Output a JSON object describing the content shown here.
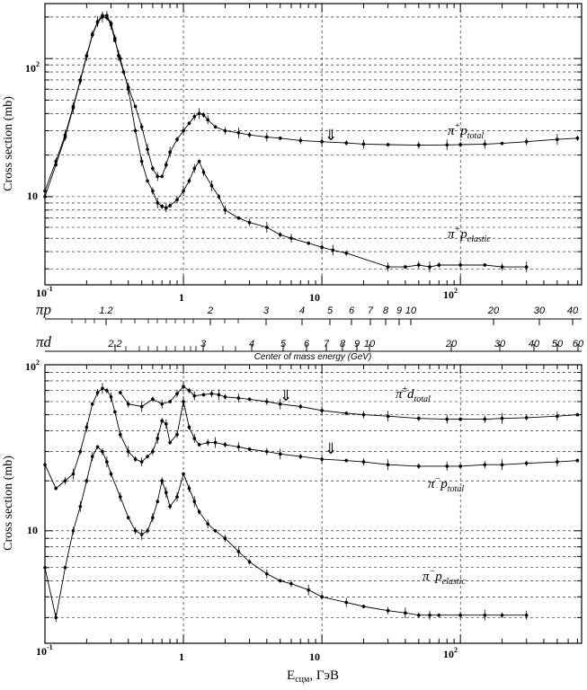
{
  "chart_data": [
    {
      "type": "scatter",
      "xscale": "log",
      "yscale": "log",
      "xlim": [
        0.1,
        750
      ],
      "ylim": [
        2.3,
        250
      ],
      "ylabel": "Cross section (mb)",
      "x_tick_labels": [
        "10",
        "1",
        "10",
        "10"
      ],
      "x_tick_exponents": [
        "-1",
        "",
        "",
        "2"
      ],
      "y_tick_labels": [
        "10",
        "10"
      ],
      "y_tick_exponents": [
        "",
        "2"
      ],
      "series": [
        {
          "name": "π⁺p total",
          "label_main": "π",
          "label_sup": "+",
          "label_mid": "p",
          "label_sub": "total",
          "x": [
            0.1,
            0.12,
            0.14,
            0.16,
            0.18,
            0.2,
            0.22,
            0.24,
            0.26,
            0.28,
            0.3,
            0.32,
            0.34,
            0.37,
            0.4,
            0.45,
            0.5,
            0.55,
            0.6,
            0.65,
            0.7,
            0.75,
            0.8,
            0.9,
            1.0,
            1.1,
            1.2,
            1.3,
            1.4,
            1.5,
            1.7,
            2.0,
            2.5,
            3.0,
            4.0,
            5.0,
            7.0,
            10,
            15,
            20,
            30,
            50,
            80,
            100,
            150,
            200,
            300,
            500,
            700
          ],
          "y": [
            11,
            18,
            28,
            45,
            70,
            105,
            150,
            185,
            205,
            205,
            180,
            140,
            105,
            80,
            62,
            45,
            32,
            22,
            16,
            14,
            14,
            17,
            21,
            26,
            30,
            34,
            38,
            40,
            39,
            36,
            32,
            30,
            29,
            28,
            27,
            26.5,
            25.5,
            25,
            24.5,
            24,
            23.8,
            23.6,
            23.7,
            23.8,
            24,
            24.3,
            25,
            26,
            26.5
          ]
        },
        {
          "name": "π⁺p elastic",
          "label_main": "π",
          "label_sup": "+",
          "label_mid": "p",
          "label_sub": "elastic",
          "x": [
            0.1,
            0.12,
            0.14,
            0.16,
            0.18,
            0.2,
            0.22,
            0.24,
            0.26,
            0.28,
            0.3,
            0.32,
            0.35,
            0.4,
            0.45,
            0.5,
            0.55,
            0.6,
            0.65,
            0.7,
            0.75,
            0.8,
            0.9,
            1.0,
            1.1,
            1.2,
            1.3,
            1.4,
            1.6,
            1.8,
            2.0,
            2.5,
            3.0,
            4.0,
            5.0,
            6.0,
            8.0,
            10,
            12,
            15,
            30,
            40,
            50,
            60,
            70,
            100,
            150,
            200,
            300
          ],
          "y": [
            10,
            17,
            27,
            44,
            69,
            104,
            148,
            183,
            200,
            198,
            175,
            135,
            100,
            60,
            30,
            18,
            13,
            11,
            9,
            8.5,
            8.3,
            8.6,
            9.5,
            11,
            13,
            16,
            18,
            15,
            12,
            10,
            8,
            7,
            6.5,
            6,
            5.3,
            5,
            4.6,
            4.3,
            4.1,
            3.9,
            3.1,
            3.1,
            3.2,
            3.1,
            3.2,
            3.2,
            3.2,
            3.1,
            3.1
          ]
        }
      ]
    },
    {
      "type": "scatter",
      "xscale": "log",
      "yscale": "log",
      "xlim": [
        0.1,
        750
      ],
      "ylim": [
        2.1,
        100
      ],
      "xlabel": "E",
      "xlabel_sub": "сцм",
      "xlabel_tail": ", ГэВ",
      "ylabel": "Cross section (mb)",
      "x_tick_labels": [
        "10",
        "1",
        "10",
        "10"
      ],
      "x_tick_exponents": [
        "-1",
        "",
        "",
        "2"
      ],
      "y_tick_labels": [
        "10",
        "10"
      ],
      "y_tick_exponents": [
        "",
        "2"
      ],
      "series": [
        {
          "name": "π±d total",
          "label_main": "π",
          "label_sup": "±",
          "label_mid": "d",
          "label_sub": "total",
          "x": [
            0.35,
            0.4,
            0.5,
            0.6,
            0.7,
            0.8,
            0.9,
            1.0,
            1.1,
            1.2,
            1.4,
            1.6,
            1.8,
            2.0,
            2.5,
            3,
            4,
            5,
            7,
            10,
            15,
            20,
            30,
            50,
            80,
            100,
            150,
            200,
            300,
            500,
            700
          ],
          "y": [
            68,
            58,
            56,
            62,
            58,
            60,
            67,
            74,
            70,
            65,
            66,
            67,
            66,
            64,
            63,
            62,
            60,
            58,
            56,
            53,
            51,
            50,
            49,
            47.5,
            47,
            47,
            47,
            47.5,
            48,
            49,
            50
          ]
        },
        {
          "name": "π⁻p total",
          "label_main": "π",
          "label_sup": "−",
          "label_mid": "p",
          "label_sub": "total",
          "x": [
            0.1,
            0.12,
            0.14,
            0.16,
            0.18,
            0.2,
            0.22,
            0.24,
            0.26,
            0.28,
            0.3,
            0.32,
            0.35,
            0.4,
            0.45,
            0.5,
            0.55,
            0.6,
            0.65,
            0.7,
            0.75,
            0.8,
            0.9,
            1.0,
            1.1,
            1.2,
            1.3,
            1.5,
            1.7,
            2.0,
            2.5,
            3,
            4,
            5,
            7,
            10,
            15,
            20,
            30,
            50,
            80,
            100,
            150,
            200,
            300,
            500,
            700
          ],
          "y": [
            25,
            18,
            20,
            22,
            30,
            42,
            58,
            68,
            72,
            70,
            64,
            52,
            38,
            30,
            27,
            26,
            28,
            30,
            36,
            46,
            44,
            34,
            38,
            60,
            42,
            36,
            33,
            34,
            34,
            33,
            32,
            31,
            30,
            29,
            28,
            27,
            26.5,
            26,
            25,
            24.5,
            24.5,
            24.5,
            25,
            25,
            25.5,
            26,
            26.5
          ]
        },
        {
          "name": "π⁻p elastic",
          "label_main": "π",
          "label_sup": "−",
          "label_mid": "p",
          "label_sub": "elastic",
          "x": [
            0.1,
            0.12,
            0.14,
            0.16,
            0.18,
            0.2,
            0.22,
            0.24,
            0.26,
            0.28,
            0.3,
            0.35,
            0.4,
            0.45,
            0.5,
            0.55,
            0.6,
            0.65,
            0.7,
            0.75,
            0.8,
            0.9,
            1.0,
            1.1,
            1.2,
            1.3,
            1.5,
            1.7,
            2.0,
            2.5,
            3,
            4,
            5,
            6,
            8,
            10,
            15,
            20,
            30,
            40,
            50,
            60,
            70,
            100,
            150,
            200,
            300
          ],
          "y": [
            6,
            3,
            6,
            10,
            14,
            20,
            28,
            32,
            30,
            26,
            22,
            16,
            12,
            10,
            9.5,
            10,
            12,
            15,
            20,
            17,
            14,
            16,
            22,
            18,
            15,
            13,
            11,
            10,
            9,
            7.5,
            6.5,
            5.5,
            5,
            4.8,
            4.4,
            4,
            3.7,
            3.5,
            3.3,
            3.2,
            3.1,
            3.1,
            3.1,
            3.1,
            3.1,
            3.1,
            3.1
          ]
        }
      ]
    }
  ],
  "middle_axes": {
    "pip_label": "πp",
    "pip_ticks": [
      "1.2",
      "2",
      "3",
      "4",
      "5",
      "6",
      "7",
      "8",
      "9",
      "10",
      "20",
      "30",
      "40"
    ],
    "pid_label": "πd",
    "pid_ticks": [
      "2.2",
      "3",
      "4",
      "5",
      "6",
      "7",
      "8",
      "9",
      "10",
      "20",
      "30",
      "40",
      "50",
      "60"
    ],
    "caption": "Center of mass energy (GeV)"
  },
  "arrow_glyph": "⇓"
}
